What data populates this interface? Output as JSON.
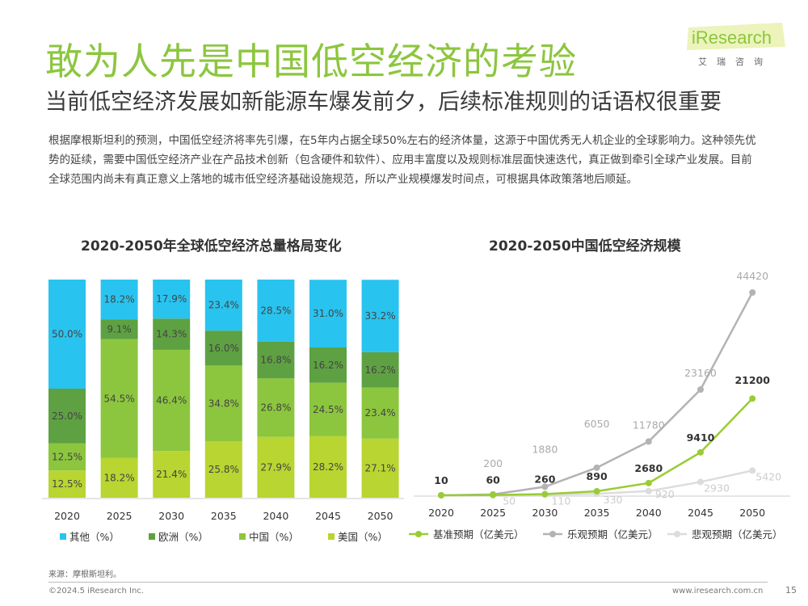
{
  "header": {
    "title": "敢为人先是中国低空经济的考验",
    "subtitle": "当前低空经济发展如新能源车爆发前夕，后续标准规则的话语权很重要",
    "logo_word": "iResearch",
    "logo_sub": "艾瑞咨询"
  },
  "description": "根据摩根斯坦利的预测，中国低空经济将率先引爆，在5年内占据全球50%左右的经济体量，这源于中国优秀无人机企业的全球影响力。这种领先优势的延续，需要中国低空经济产业在产品技术创新（包含硬件和软件）、应用丰富度以及规则标准层面快速迭代，真正做到牵引全球产业发展。目前全球范围内尚未有真正意义上落地的城市低空经济基础设施规范，所以产业规模爆发时间点，可根据具体政策落地后顺延。",
  "colors": {
    "other": "#29c3ef",
    "europe": "#5ea142",
    "china": "#8cc63e",
    "usa": "#b9d531",
    "base": "#99cc33",
    "optimistic": "#b3b3b3",
    "pessimistic": "#dcdcdc"
  },
  "chart_data": [
    {
      "type": "bar",
      "stacked": true,
      "title": "2020-2050年全球低空经济总量格局变化",
      "categories": [
        "2020",
        "2025",
        "2030",
        "2035",
        "2040",
        "2045",
        "2050"
      ],
      "series": [
        {
          "name": "美国（%）",
          "values": [
            12.5,
            18.2,
            21.4,
            25.8,
            27.9,
            28.2,
            27.1
          ],
          "labels": [
            "12.5%",
            "18.2%",
            "21.4%",
            "25.8%",
            "27.9%",
            "28.2%",
            "27.1%"
          ]
        },
        {
          "name": "中国（%）",
          "values": [
            12.5,
            54.5,
            46.4,
            34.8,
            26.8,
            24.5,
            23.4
          ],
          "labels": [
            "12.5%",
            "54.5%",
            "46.4%",
            "34.8%",
            "26.8%",
            "24.5%",
            "23.4%"
          ]
        },
        {
          "name": "欧洲（%）",
          "values": [
            25.0,
            9.1,
            14.3,
            16.0,
            16.8,
            16.2,
            16.2
          ],
          "labels": [
            "25.0%",
            "9.1%",
            "14.3%",
            "16.0%",
            "16.8%",
            "16.2%",
            "16.2%"
          ]
        },
        {
          "name": "其他（%）",
          "values": [
            50.0,
            18.2,
            17.9,
            23.4,
            28.5,
            31.0,
            33.2
          ],
          "labels": [
            "50.0%",
            "18.2%",
            "17.9%",
            "23.4%",
            "28.5%",
            "31.0%",
            "33.2%"
          ]
        }
      ],
      "legend_order": [
        3,
        2,
        1,
        0
      ],
      "legend": "bottom"
    },
    {
      "type": "line",
      "title": "2020-2050中国低空经济规模",
      "x": [
        "2020",
        "2025",
        "2030",
        "2035",
        "2040",
        "2045",
        "2050"
      ],
      "series": [
        {
          "name": "基准预期（亿美元）",
          "values": [
            10,
            60,
            260,
            890,
            2680,
            9410,
            21200
          ],
          "labels": [
            "10",
            "60",
            "260",
            "890",
            "2680",
            "9410",
            "21200"
          ]
        },
        {
          "name": "乐观预期（亿美元）",
          "values": [
            10,
            200,
            1880,
            6050,
            11780,
            23160,
            44420
          ],
          "labels": [
            "",
            "200",
            "1880",
            "6050",
            "11780",
            "23160",
            "44420"
          ]
        },
        {
          "name": "悲观预期（亿美元）",
          "values": [
            10,
            50,
            110,
            330,
            920,
            2930,
            5420
          ],
          "labels": [
            "",
            "50",
            "110",
            "330",
            "920",
            "2930",
            "5420"
          ]
        }
      ],
      "ylim": [
        0,
        50000
      ],
      "legend": "bottom"
    }
  ],
  "footer": {
    "source": "来源：摩根斯坦利。",
    "copyright": "©2024.5 iResearch Inc.",
    "site": "www.iresearch.com.cn",
    "page": "15"
  }
}
